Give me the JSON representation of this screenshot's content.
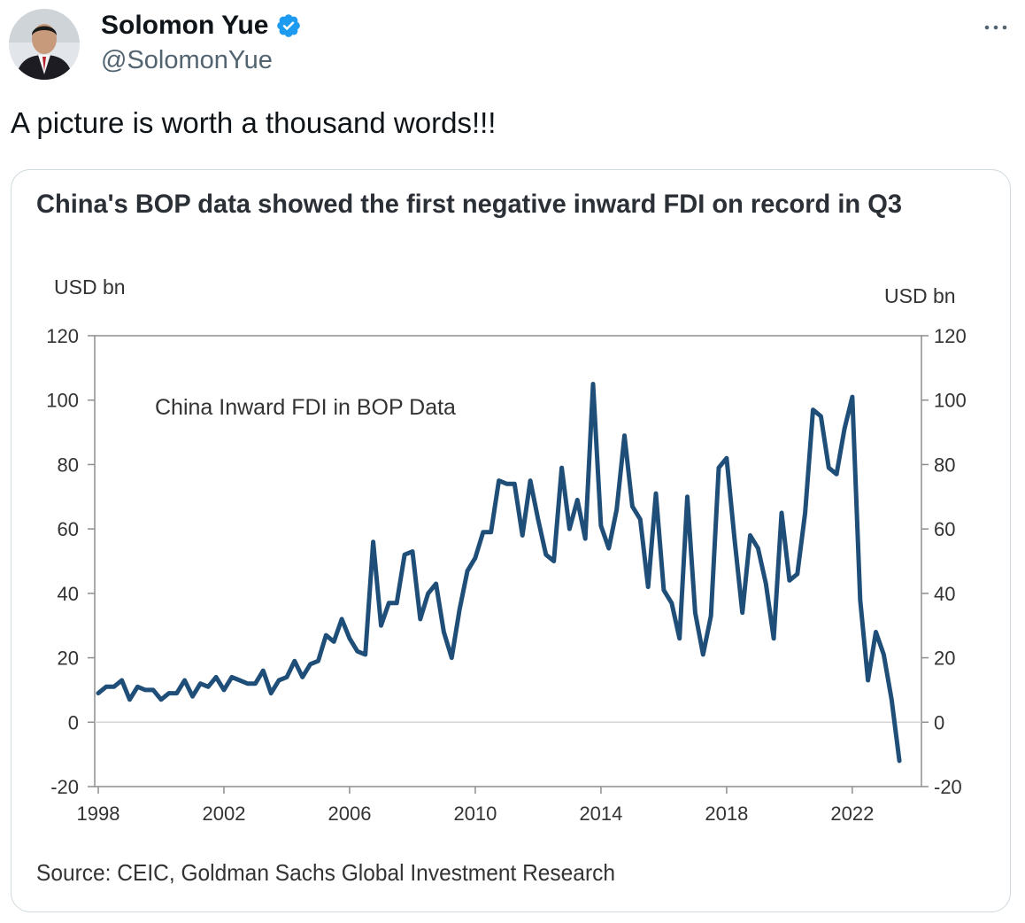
{
  "tweet": {
    "author_name": "Solomon Yue",
    "handle": "@SolomonYue",
    "verified": true,
    "text": "A picture is worth a thousand words!!!",
    "more_icon": "more-horizontal-icon",
    "badge_icon": "verified-badge-icon",
    "colors": {
      "badge": "#1d9bf0",
      "handle": "#536471",
      "text": "#0f1419"
    }
  },
  "chart_data": {
    "type": "line",
    "title": "China's BOP data showed the first negative inward FDI on record in Q3",
    "series_label": "China  Inward  FDI  in  BOP Data",
    "ylabel_left": "USD bn",
    "ylabel_right": "USD bn",
    "source": "Source: CEIC, Goldman Sachs Global Investment Research",
    "ylim": [
      -20,
      120
    ],
    "yticks": [
      120,
      100,
      80,
      60,
      40,
      20,
      0,
      -20
    ],
    "xlim": [
      1998,
      2023.75
    ],
    "xticks": [
      "1998",
      "2002",
      "2006",
      "2010",
      "2014",
      "2018",
      "2022"
    ],
    "line_color": "#1f4e79",
    "series": [
      {
        "name": "China Inward FDI in BOP Data",
        "x": [
          1998.0,
          1998.25,
          1998.5,
          1998.75,
          1999.0,
          1999.25,
          1999.5,
          1999.75,
          2000.0,
          2000.25,
          2000.5,
          2000.75,
          2001.0,
          2001.25,
          2001.5,
          2001.75,
          2002.0,
          2002.25,
          2002.5,
          2002.75,
          2003.0,
          2003.25,
          2003.5,
          2003.75,
          2004.0,
          2004.25,
          2004.5,
          2004.75,
          2005.0,
          2005.25,
          2005.5,
          2005.75,
          2006.0,
          2006.25,
          2006.5,
          2006.75,
          2007.0,
          2007.25,
          2007.5,
          2007.75,
          2008.0,
          2008.25,
          2008.5,
          2008.75,
          2009.0,
          2009.25,
          2009.5,
          2009.75,
          2010.0,
          2010.25,
          2010.5,
          2010.75,
          2011.0,
          2011.25,
          2011.5,
          2011.75,
          2012.0,
          2012.25,
          2012.5,
          2012.75,
          2013.0,
          2013.25,
          2013.5,
          2013.75,
          2014.0,
          2014.25,
          2014.5,
          2014.75,
          2015.0,
          2015.25,
          2015.5,
          2015.75,
          2016.0,
          2016.25,
          2016.5,
          2016.75,
          2017.0,
          2017.25,
          2017.5,
          2017.75,
          2018.0,
          2018.25,
          2018.5,
          2018.75,
          2019.0,
          2019.25,
          2019.5,
          2019.75,
          2020.0,
          2020.25,
          2020.5,
          2020.75,
          2021.0,
          2021.25,
          2021.5,
          2021.75,
          2022.0,
          2022.25,
          2022.5,
          2022.75,
          2023.0,
          2023.25,
          2023.5
        ],
        "values": [
          9,
          11,
          11,
          13,
          7,
          11,
          10,
          10,
          7,
          9,
          9,
          13,
          8,
          12,
          11,
          14,
          10,
          14,
          13,
          12,
          12,
          16,
          9,
          13,
          14,
          19,
          14,
          18,
          19,
          27,
          25,
          32,
          26,
          22,
          21,
          56,
          30,
          37,
          37,
          52,
          53,
          32,
          40,
          43,
          28,
          20,
          35,
          47,
          51,
          59,
          59,
          75,
          74,
          74,
          58,
          75,
          63,
          52,
          50,
          79,
          60,
          69,
          57,
          105,
          61,
          54,
          66,
          89,
          67,
          63,
          42,
          71,
          41,
          37,
          26,
          70,
          34,
          21,
          33,
          79,
          82,
          57,
          34,
          58,
          54,
          43,
          26,
          65,
          44,
          46,
          65,
          97,
          95,
          79,
          77,
          91,
          101,
          38,
          13,
          28,
          21,
          7,
          -12
        ]
      }
    ]
  }
}
